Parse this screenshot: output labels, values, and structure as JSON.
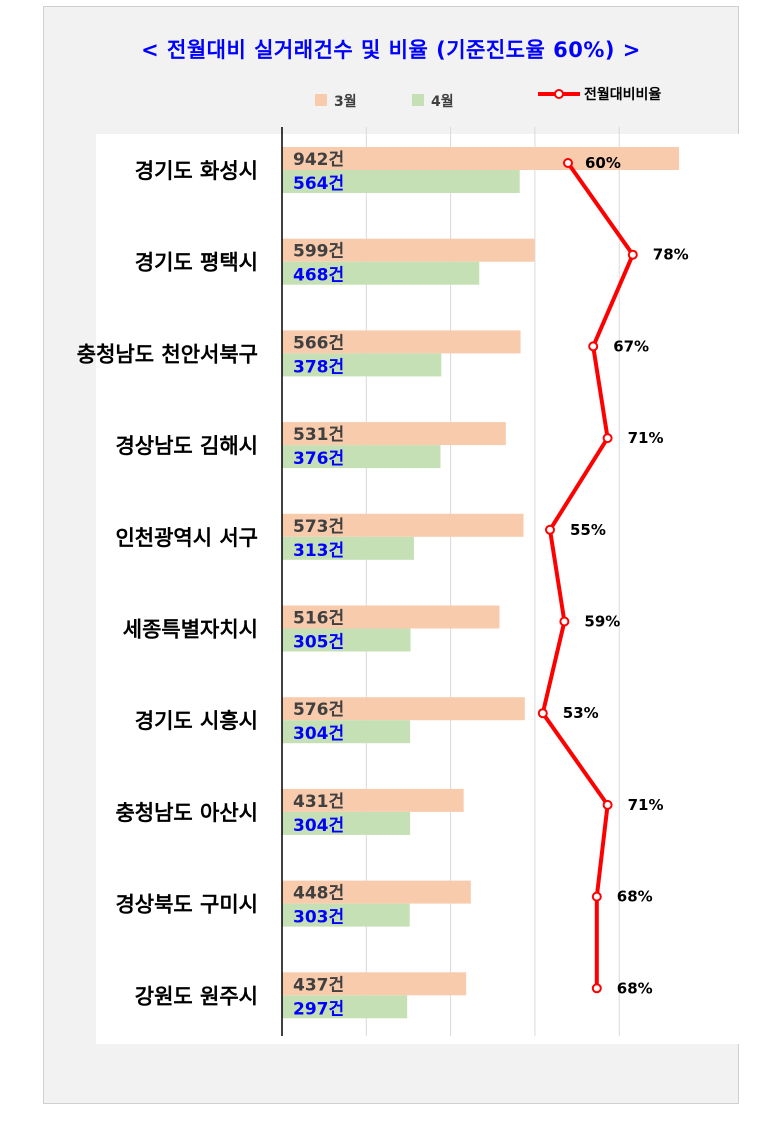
{
  "chart_data": {
    "type": "bar",
    "orientation": "horizontal",
    "title": "< 전월대비 실거래건수 및 비율 (기준진도율 60%) >",
    "categories": [
      "경기도 화성시",
      "경기도 평택시",
      "충청남도 천안서북구",
      "경상남도 김해시",
      "인천광역시 서구",
      "세종특별자치시",
      "경기도 시흥시",
      "충청남도 아산시",
      "경상북도 구미시",
      "강원도 원주시"
    ],
    "series": [
      {
        "name": "3월",
        "type": "bar",
        "color": "#f8cbad",
        "values": [
          942,
          599,
          566,
          531,
          573,
          516,
          576,
          431,
          448,
          437
        ],
        "labels": [
          "942건",
          "599건",
          "566건",
          "531건",
          "573건",
          "516건",
          "576건",
          "431건",
          "448건",
          "437건"
        ]
      },
      {
        "name": "4월",
        "type": "bar",
        "color": "#c5e0b4",
        "values": [
          564,
          468,
          378,
          376,
          313,
          305,
          304,
          304,
          303,
          297
        ],
        "labels": [
          "564건",
          "468건",
          "378건",
          "376건",
          "313건",
          "305건",
          "304건",
          "304건",
          "303건",
          "297건"
        ]
      },
      {
        "name": "전월대비비율",
        "type": "line",
        "color": "#ff0000",
        "values": [
          60,
          78,
          67,
          71,
          55,
          59,
          53,
          71,
          68,
          68
        ],
        "labels": [
          "60%",
          "78%",
          "67%",
          "71%",
          "55%",
          "59%",
          "53%",
          "71%",
          "68%",
          "68%"
        ]
      }
    ],
    "xlim": [
      0,
      1000
    ],
    "grid": true,
    "legend_position": "top"
  }
}
